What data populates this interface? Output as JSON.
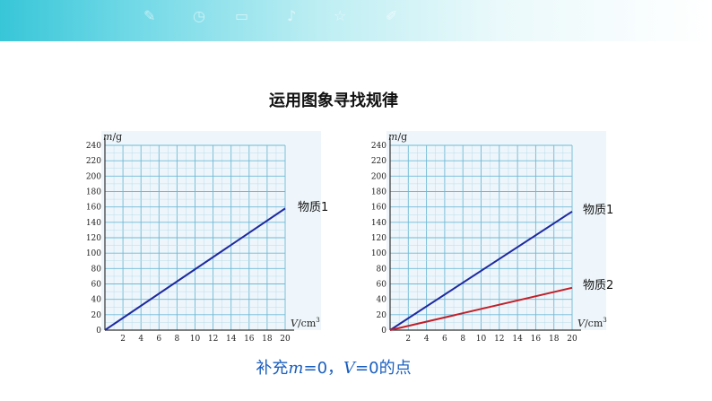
{
  "title": "运用图象寻找规律",
  "note": {
    "prefix": "补充",
    "m_symbol": "m",
    "m_eq": "=0，",
    "v_symbol": "V",
    "v_eq": "=0的点"
  },
  "chart_data": [
    {
      "type": "line",
      "ylabel_symbol": "m",
      "ylabel_unit": "/g",
      "xlabel_symbol": "V",
      "xlabel_unit": "/cm",
      "xlabel_sup": "3",
      "xlim": [
        0,
        20
      ],
      "ylim": [
        0,
        240
      ],
      "xticks": [
        2,
        4,
        6,
        8,
        10,
        12,
        14,
        16,
        18,
        20
      ],
      "yticks": [
        0,
        20,
        40,
        60,
        80,
        100,
        120,
        140,
        160,
        180,
        200,
        220,
        240
      ],
      "grid": true,
      "series": [
        {
          "name": "物质1",
          "color": "#1f2aa0",
          "x": [
            0,
            20
          ],
          "y": [
            0,
            158
          ]
        }
      ]
    },
    {
      "type": "line",
      "ylabel_symbol": "m",
      "ylabel_unit": "/g",
      "xlabel_symbol": "V",
      "xlabel_unit": "/cm",
      "xlabel_sup": "3",
      "xlim": [
        0,
        20
      ],
      "ylim": [
        0,
        240
      ],
      "xticks": [
        2,
        4,
        6,
        8,
        10,
        12,
        14,
        16,
        18,
        20
      ],
      "yticks": [
        0,
        20,
        40,
        60,
        80,
        100,
        120,
        140,
        160,
        180,
        200,
        220,
        240
      ],
      "grid": true,
      "series": [
        {
          "name": "物质1",
          "color": "#1f2aa0",
          "x": [
            0,
            20
          ],
          "y": [
            0,
            154
          ]
        },
        {
          "name": "物质2",
          "color": "#c0202a",
          "x": [
            0,
            20
          ],
          "y": [
            0,
            55
          ]
        }
      ]
    }
  ]
}
